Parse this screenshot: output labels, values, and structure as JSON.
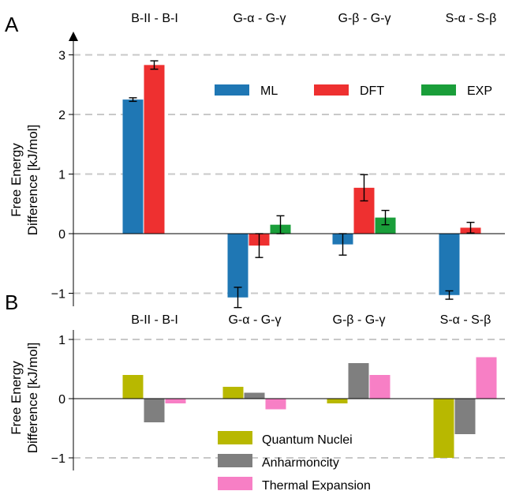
{
  "chart_data": [
    {
      "type": "bar",
      "panel": "A",
      "categories": [
        "B-II - B-I",
        "G-α - G-γ",
        "G-β - G-γ",
        "S-α - S-β"
      ],
      "ylabel_line1": "Free Energy",
      "ylabel_line2": "Difference [kJ/mol]",
      "ylim": [
        -1.2,
        3.3
      ],
      "yticks": [
        -1,
        0,
        1,
        2,
        3
      ],
      "ytick_labels": [
        "−1",
        "0",
        "1",
        "2",
        "3"
      ],
      "grid": "horizontal dashed",
      "legend_position": "upper-right",
      "series": [
        {
          "name": "ML",
          "color": "#1f77b4",
          "values": [
            2.25,
            -1.07,
            -0.18,
            -1.03
          ],
          "errors": [
            0.03,
            0.17,
            0.18,
            0.07
          ]
        },
        {
          "name": "DFT",
          "color": "#ee3030",
          "values": [
            2.83,
            -0.2,
            0.77,
            0.1
          ],
          "errors": [
            0.07,
            0.2,
            0.22,
            0.09
          ]
        },
        {
          "name": "EXP",
          "color": "#1a9e3a",
          "values": [
            null,
            0.15,
            0.27,
            null
          ],
          "errors": [
            null,
            0.15,
            0.12,
            null
          ]
        }
      ]
    },
    {
      "type": "bar",
      "panel": "B",
      "categories": [
        "B-II - B-I",
        "G-α - G-γ",
        "G-β - G-γ",
        "S-α - S-β"
      ],
      "ylabel_line1": "Free Energy",
      "ylabel_line2": "Difference [kJ/mol]",
      "ylim": [
        -1.1,
        1.1
      ],
      "yticks": [
        -1,
        0,
        1
      ],
      "ytick_labels": [
        "−1",
        "0",
        "1"
      ],
      "grid": "horizontal dashed",
      "legend_position": "lower-center",
      "series": [
        {
          "name": "Quantum Nuclei",
          "color": "#b8b800",
          "values": [
            0.4,
            0.2,
            -0.08,
            -1.0
          ]
        },
        {
          "name": "Anharmoncity",
          "color": "#7f7f7f",
          "values": [
            -0.4,
            0.1,
            0.6,
            -0.6
          ]
        },
        {
          "name": "Thermal Expansion",
          "color": "#f77fc5",
          "values": [
            -0.08,
            -0.18,
            0.4,
            0.7
          ]
        }
      ]
    }
  ]
}
